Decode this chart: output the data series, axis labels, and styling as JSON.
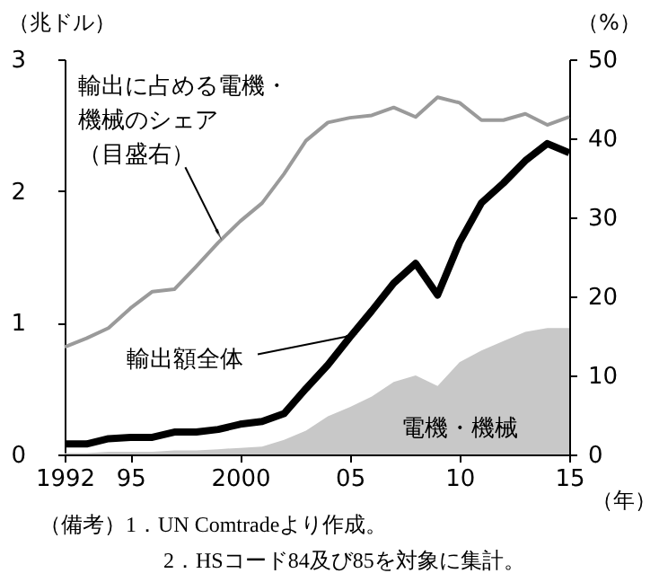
{
  "chart_data": {
    "type": "line",
    "ylabel": "（兆ドル）",
    "y2label": "（%）",
    "xlabel": "（年）",
    "x": [
      1992,
      1993,
      1994,
      1995,
      1996,
      1997,
      1998,
      1999,
      2000,
      2001,
      2002,
      2003,
      2004,
      2005,
      2006,
      2007,
      2008,
      2009,
      2010,
      2011,
      2012,
      2013,
      2014,
      2015
    ],
    "series": [
      {
        "name": "電機・機械",
        "type": "area",
        "color": "#c8c8c8",
        "values": [
          0.01,
          0.01,
          0.02,
          0.02,
          0.02,
          0.03,
          0.03,
          0.04,
          0.05,
          0.06,
          0.11,
          0.18,
          0.29,
          0.36,
          0.44,
          0.55,
          0.6,
          0.52,
          0.7,
          0.79,
          0.86,
          0.93,
          0.96,
          0.96
        ]
      },
      {
        "name": "輸出額全体",
        "color": "#000000",
        "values": [
          0.08,
          0.08,
          0.12,
          0.13,
          0.13,
          0.17,
          0.17,
          0.19,
          0.23,
          0.25,
          0.31,
          0.5,
          0.68,
          0.89,
          1.09,
          1.3,
          1.45,
          1.21,
          1.61,
          1.91,
          2.06,
          2.23,
          2.36,
          2.29
        ]
      },
      {
        "name": "輸出に占める電機・機械のシェア（目盛右）",
        "type": "line",
        "axis": "y2",
        "color": "#9a9a9a",
        "values": [
          13.6,
          14.7,
          16,
          18.5,
          20.6,
          20.9,
          23.8,
          26.8,
          29.5,
          31.8,
          35.5,
          39.7,
          42,
          42.6,
          42.9,
          43.9,
          42.7,
          45.2,
          44.5,
          42.3,
          42.3,
          43.1,
          41.7,
          42.7
        ]
      }
    ],
    "xlim": [
      1992,
      2015
    ],
    "xticks": [
      1992,
      {
        "value": 1995,
        "label": "95"
      },
      2000,
      {
        "value": 2005,
        "label": "05"
      },
      {
        "value": 2010,
        "label": "10"
      },
      {
        "value": 2015,
        "label": "15"
      }
    ],
    "ylim": [
      0,
      3
    ],
    "yticks": [
      0,
      1,
      2,
      3
    ],
    "y2lim": [
      0,
      50
    ],
    "y2ticks": [
      0,
      10,
      20,
      30,
      40,
      50
    ],
    "grid": false,
    "marker": "none",
    "line_style": "solid",
    "annotations": [
      "（備考）1．UN Comtradeより作成。",
      "2．HSコード84及び85を対象に集計。"
    ]
  }
}
